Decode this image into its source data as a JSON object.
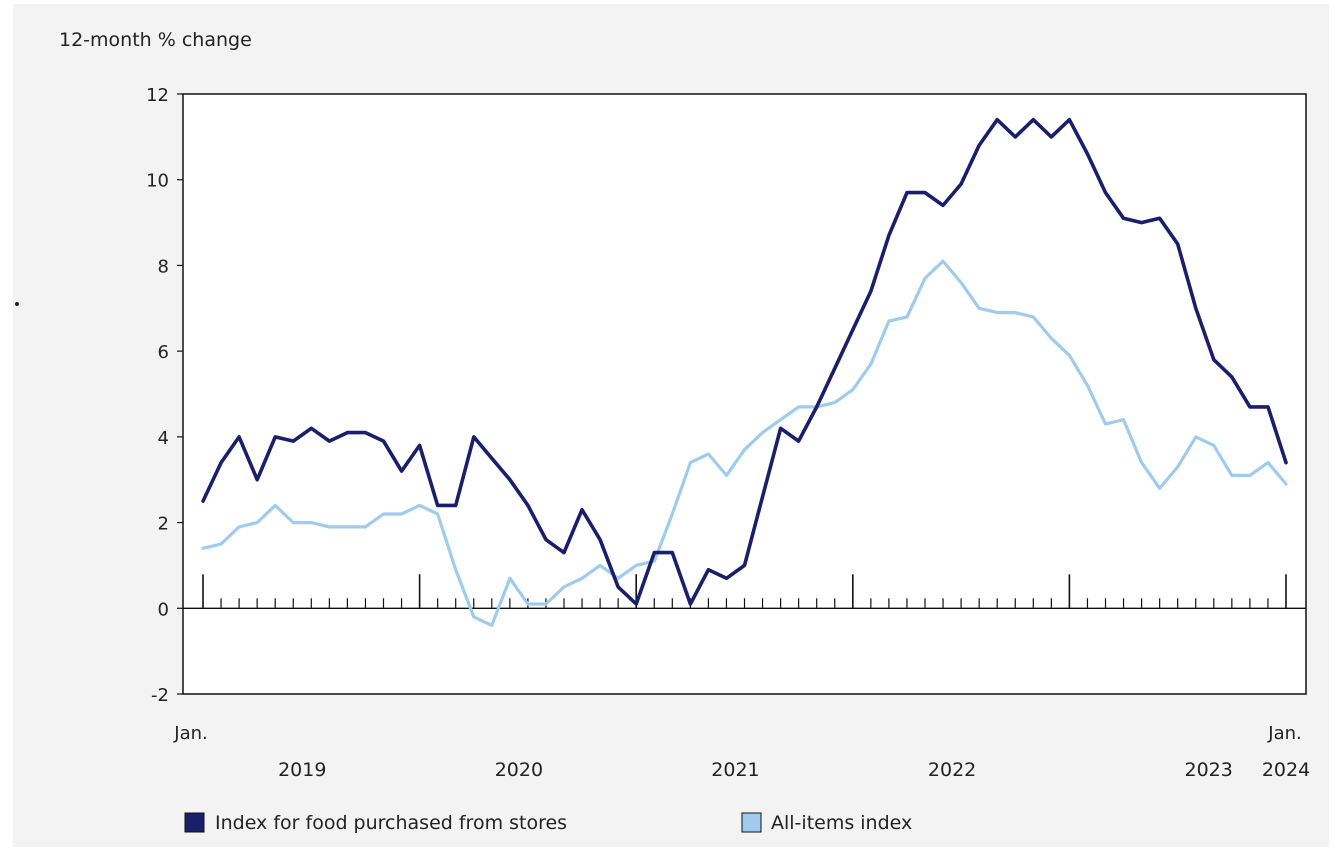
{
  "chart_data": {
    "type": "line",
    "ylabel": "12-month % change",
    "ylim": [
      -2,
      12
    ],
    "yticks": [
      12,
      10,
      8,
      6,
      4,
      2,
      0,
      -2
    ],
    "x_start": "Jan. 2019",
    "x_end": "Jan. 2024",
    "x_first_label": "Jan.",
    "x_last_label": "Jan.",
    "year_labels": [
      "2019",
      "2020",
      "2021",
      "2022",
      "2023",
      "2024"
    ],
    "grid": false,
    "legend_position": "bottom",
    "series": [
      {
        "name": "Index for food purchased from stores",
        "color": "#1a1f6b",
        "values": [
          2.5,
          3.4,
          4.0,
          3.0,
          4.0,
          3.9,
          4.2,
          3.9,
          4.1,
          4.1,
          3.9,
          3.2,
          3.8,
          2.4,
          2.4,
          4.0,
          3.5,
          3.0,
          2.4,
          1.6,
          1.3,
          2.3,
          1.6,
          0.5,
          0.1,
          1.3,
          1.3,
          0.1,
          0.9,
          0.7,
          1.0,
          2.6,
          4.2,
          3.9,
          4.7,
          5.6,
          6.5,
          7.4,
          8.7,
          9.7,
          9.7,
          9.4,
          9.9,
          10.8,
          11.4,
          11.0,
          11.4,
          11.0,
          11.4,
          10.6,
          9.7,
          9.1,
          9.0,
          9.1,
          8.5,
          7.0,
          5.8,
          5.4,
          4.7,
          4.7,
          3.4
        ]
      },
      {
        "name": "All-items index",
        "color": "#9fcbef",
        "values": [
          1.4,
          1.5,
          1.9,
          2.0,
          2.4,
          2.0,
          2.0,
          1.9,
          1.9,
          1.9,
          2.2,
          2.2,
          2.4,
          2.2,
          0.9,
          -0.2,
          -0.4,
          0.7,
          0.1,
          0.1,
          0.5,
          0.7,
          1.0,
          0.7,
          1.0,
          1.1,
          2.2,
          3.4,
          3.6,
          3.1,
          3.7,
          4.1,
          4.4,
          4.7,
          4.7,
          4.8,
          5.1,
          5.7,
          6.7,
          6.8,
          7.7,
          8.1,
          7.6,
          7.0,
          6.9,
          6.9,
          6.8,
          6.3,
          5.9,
          5.2,
          4.3,
          4.4,
          3.4,
          2.8,
          3.3,
          4.0,
          3.8,
          3.1,
          3.1,
          3.4,
          2.9
        ]
      }
    ]
  }
}
